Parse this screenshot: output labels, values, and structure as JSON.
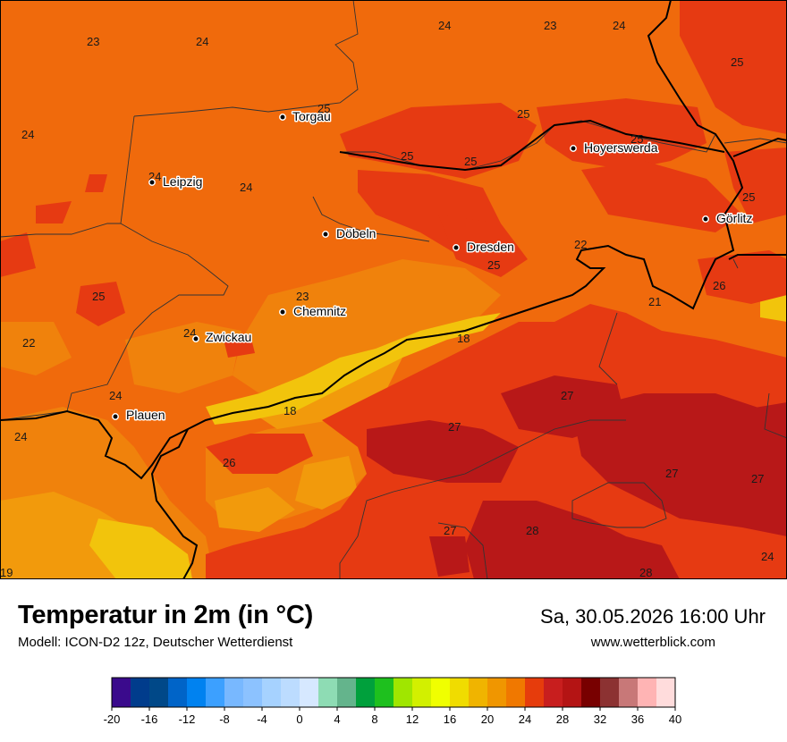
{
  "header": {
    "title": "Temperatur in 2m (in °C)",
    "model": "Modell: ICON-D2 12z, Deutscher Wetterdienst",
    "datetime": "Sa, 30.05.2026 16:00 Uhr",
    "website": "www.wetterblick.com"
  },
  "cities": [
    "Torgau",
    "Hoyerswerda",
    "Leipzig",
    "Döbeln",
    "Dresden",
    "Görlitz",
    "Chemnitz",
    "Zwickau",
    "Plauen"
  ],
  "value_labels": [
    "23",
    "24",
    "24",
    "23",
    "24",
    "25",
    "25",
    "25",
    "24",
    "25",
    "25",
    "25",
    "24",
    "24",
    "24",
    "22",
    "25",
    "25",
    "23",
    "26",
    "25",
    "22",
    "21",
    "24",
    "18",
    "24",
    "18",
    "27",
    "24",
    "27",
    "26",
    "27",
    "27",
    "27",
    "28",
    "24",
    "28",
    "19"
  ],
  "colors": {
    "t18": "#f2c40c",
    "t20": "#f29a0c",
    "t22": "#f0820c",
    "t24": "#f06a0c",
    "t26": "#e63a12",
    "t28": "#b81818"
  },
  "legend": {
    "ticks": [
      "-20",
      "-16",
      "-12",
      "-8",
      "-4",
      "0",
      "4",
      "8",
      "12",
      "16",
      "20",
      "24",
      "28",
      "32",
      "36",
      "40"
    ],
    "colors": [
      "#3a0a8c",
      "#003c8c",
      "#004888",
      "#0064c8",
      "#0082f0",
      "#3ca0ff",
      "#78b8ff",
      "#8cc2ff",
      "#a6d2ff",
      "#bcdcff",
      "#d6e8ff",
      "#8edcb4",
      "#64b48c",
      "#00a03c",
      "#1ec01e",
      "#a0e600",
      "#d2f000",
      "#f0ff00",
      "#f0dc00",
      "#f0b400",
      "#f09600",
      "#f07800",
      "#e63c0c",
      "#c81e1e",
      "#b41414",
      "#780000",
      "#8c3232",
      "#c87878",
      "#ffb4b4",
      "#ffdcdc"
    ]
  }
}
